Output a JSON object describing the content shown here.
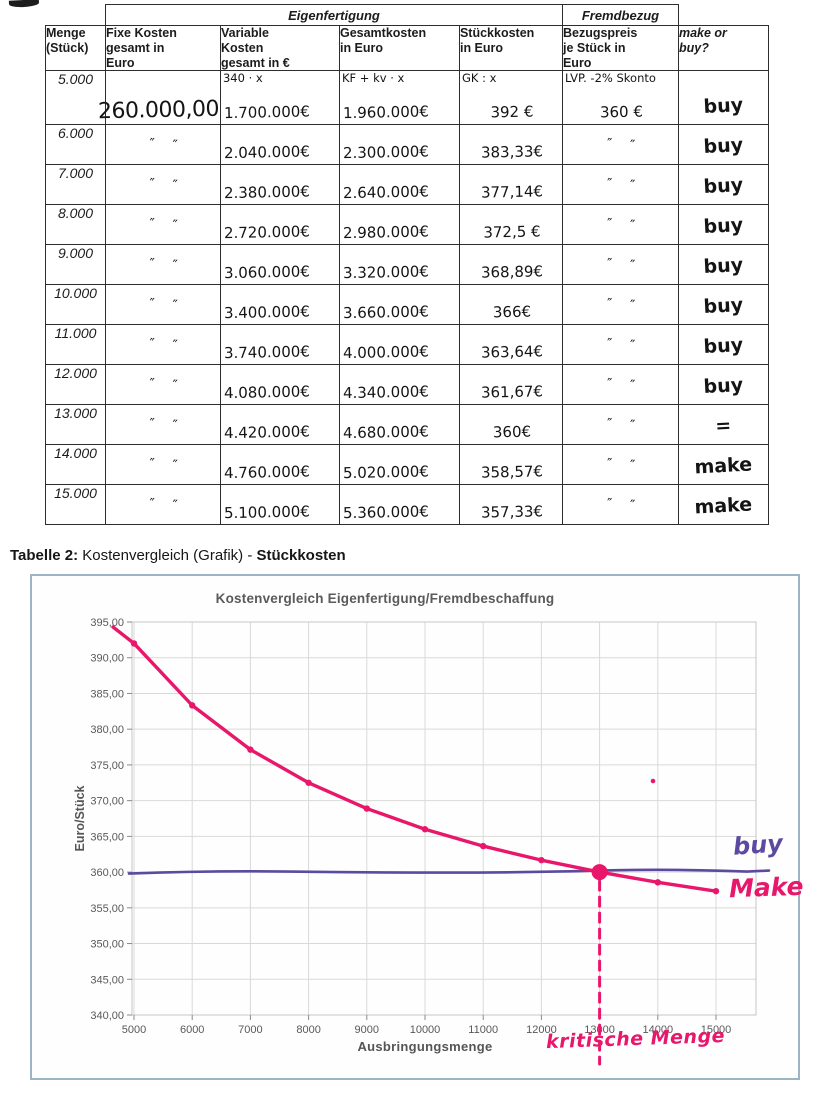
{
  "colors": {
    "pink": "#e8176b",
    "purple": "#5b4aa0",
    "grid": "#d9d9d9",
    "axis_text": "#595959"
  },
  "table1": {
    "group_headers": {
      "eigenfertigung": "Eigenfertigung",
      "fremdbezug": "Fremdbezug"
    },
    "columns": [
      "Menge\n(Stück)",
      "Fixe Kosten\ngesamt in\nEuro",
      "Variable\nKosten\ngesamt in €",
      "Gesamtkosten\nin Euro",
      "Stückkosten\nin Euro",
      "Bezugspreis\nje Stück in\nEuro",
      "make or\nbuy?"
    ],
    "formula_annotations": {
      "variable": "340 · x",
      "gesamt": "KF + kv · x",
      "stueck": "GK : x",
      "bezug": "LVP. -2% Skonto"
    },
    "rows": [
      {
        "menge": "5.000",
        "fix": "260.000,00",
        "variable": "1.700.000€",
        "gesamt": "1.960.000€",
        "stueck": "392 €",
        "bezug": "360 €",
        "decision": "buy"
      },
      {
        "menge": "6.000",
        "fix": "″    ″",
        "variable": "2.040.000€",
        "gesamt": "2.300.000€",
        "stueck": "383,33€",
        "bezug": "″    ″",
        "decision": "buy"
      },
      {
        "menge": "7.000",
        "fix": "″    ″",
        "variable": "2.380.000€",
        "gesamt": "2.640.000€",
        "stueck": "377,14€",
        "bezug": "″    ″",
        "decision": "buy"
      },
      {
        "menge": "8.000",
        "fix": "″    ″",
        "variable": "2.720.000€",
        "gesamt": "2.980.000€",
        "stueck": "372,5 €",
        "bezug": "″    ″",
        "decision": "buy"
      },
      {
        "menge": "9.000",
        "fix": "″    ″",
        "variable": "3.060.000€",
        "gesamt": "3.320.000€",
        "stueck": "368,89€",
        "bezug": "″    ″",
        "decision": "buy"
      },
      {
        "menge": "10.000",
        "fix": "″    ″",
        "variable": "3.400.000€",
        "gesamt": "3.660.000€",
        "stueck": "366€",
        "bezug": "″    ″",
        "decision": "buy"
      },
      {
        "menge": "11.000",
        "fix": "″    ″",
        "variable": "3.740.000€",
        "gesamt": "4.000.000€",
        "stueck": "363,64€",
        "bezug": "″    ″",
        "decision": "buy"
      },
      {
        "menge": "12.000",
        "fix": "″    ″",
        "variable": "4.080.000€",
        "gesamt": "4.340.000€",
        "stueck": "361,67€",
        "bezug": "″    ″",
        "decision": "buy"
      },
      {
        "menge": "13.000",
        "fix": "″    ″",
        "variable": "4.420.000€",
        "gesamt": "4.680.000€",
        "stueck": "360€",
        "bezug": "″    ″",
        "decision": "="
      },
      {
        "menge": "14.000",
        "fix": "″    ″",
        "variable": "4.760.000€",
        "gesamt": "5.020.000€",
        "stueck": "358,57€",
        "bezug": "″    ″",
        "decision": "make"
      },
      {
        "menge": "15.000",
        "fix": "″    ″",
        "variable": "5.100.000€",
        "gesamt": "5.360.000€",
        "stueck": "357,33€",
        "bezug": "″    ″",
        "decision": "make"
      }
    ]
  },
  "heading2": {
    "bold1": "Tabelle 2:",
    "normal": " Kostenvergleich (Grafik) - ",
    "bold2": "Stückkosten"
  },
  "chart_data": {
    "type": "line",
    "title": "Kostenvergleich Eigenfertigung/Fremdbeschaffung",
    "xlabel": "Ausbringungsmenge",
    "ylabel": "Euro/Stück",
    "x": [
      5000,
      6000,
      7000,
      8000,
      9000,
      10000,
      11000,
      12000,
      13000,
      14000,
      15000
    ],
    "series": [
      {
        "name": "Stückkosten Eigenfertigung (make)",
        "color": "#e8176b",
        "values": [
          392,
          383.33,
          377.14,
          372.5,
          368.89,
          366,
          363.64,
          361.67,
          360,
          358.57,
          357.33
        ]
      },
      {
        "name": "Bezugspreis Fremdbezug (buy)",
        "color": "#5b4aa0",
        "values": [
          360,
          360,
          360,
          360,
          360,
          360,
          360,
          360,
          360,
          360,
          360
        ]
      }
    ],
    "ylim": [
      340,
      395
    ],
    "ytick_step": 5,
    "grid": true,
    "legend": false,
    "annotations": {
      "buy": "buy",
      "make": "Make",
      "critical": "kritische Menge",
      "critical_x": 13000,
      "critical_y": 360
    }
  }
}
